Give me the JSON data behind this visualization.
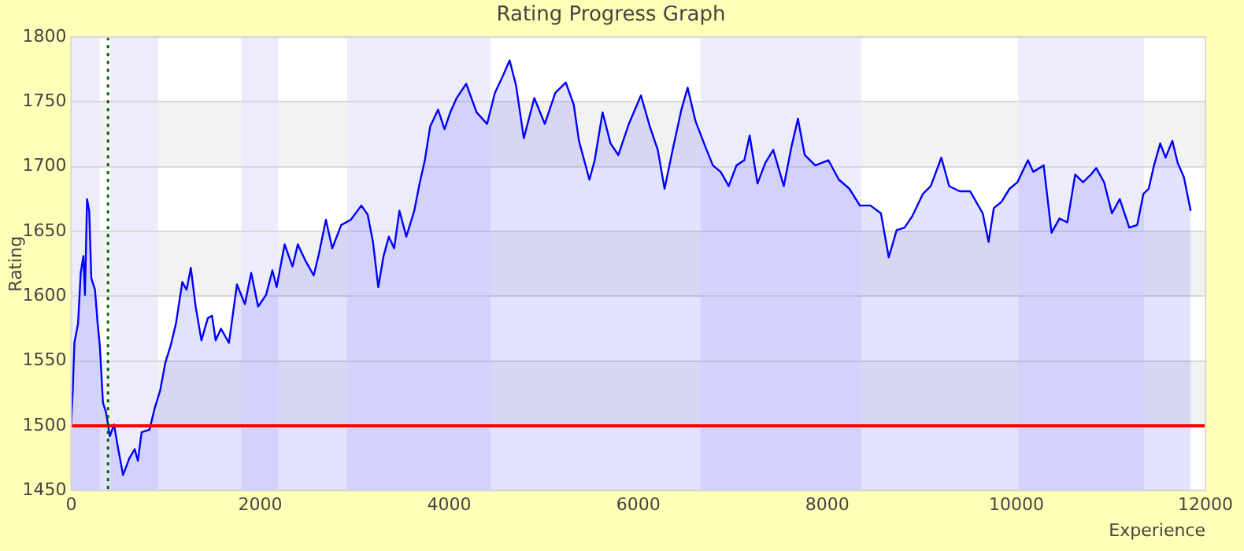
{
  "chart_data": {
    "type": "area",
    "title": "Rating Progress Graph",
    "xlabel": "Experience",
    "ylabel": "Rating",
    "xlim": [
      0,
      12000
    ],
    "xticks": [
      0,
      2000,
      4000,
      6000,
      8000,
      10000,
      12000
    ],
    "ylim": [
      1450,
      1800
    ],
    "yticks": [
      1450,
      1500,
      1550,
      1600,
      1650,
      1700,
      1750,
      1800
    ],
    "grid": "y",
    "legend": false,
    "x": [
      0,
      17,
      34,
      73,
      101,
      129,
      146,
      168,
      191,
      213,
      252,
      280,
      303,
      336,
      370,
      409,
      454,
      493,
      549,
      616,
      672,
      706,
      745,
      829,
      885,
      941,
      997,
      1053,
      1109,
      1176,
      1221,
      1266,
      1317,
      1378,
      1445,
      1490,
      1529,
      1585,
      1669,
      1754,
      1838,
      1905,
      1978,
      2062,
      2129,
      2174,
      2258,
      2342,
      2398,
      2482,
      2566,
      2622,
      2695,
      2762,
      2857,
      2958,
      3070,
      3137,
      3193,
      3249,
      3305,
      3361,
      3417,
      3473,
      3546,
      3630,
      3686,
      3742,
      3798,
      3882,
      3950,
      4011,
      4078,
      4179,
      4289,
      4400,
      4483,
      4567,
      4639,
      4706,
      4789,
      4900,
      5011,
      5122,
      5233,
      5317,
      5372,
      5483,
      5539,
      5622,
      5706,
      5789,
      5900,
      6028,
      6122,
      6206,
      6278,
      6372,
      6456,
      6522,
      6606,
      6706,
      6789,
      6872,
      6956,
      7039,
      7122,
      7178,
      7261,
      7344,
      7428,
      7539,
      7622,
      7689,
      7761,
      7872,
      8011,
      8122,
      8233,
      8344,
      8456,
      8567,
      8650,
      8733,
      8817,
      8900,
      9011,
      9094,
      9206,
      9289,
      9400,
      9511,
      9644,
      9706,
      9761,
      9844,
      9928,
      10011,
      10122,
      10178,
      10289,
      10372,
      10456,
      10539,
      10622,
      10706,
      10789,
      10844,
      10928,
      11011,
      11094,
      11194,
      11278,
      11344,
      11400,
      11456,
      11522,
      11578,
      11650,
      11706,
      11772,
      11844
    ],
    "series": [
      {
        "color": "#0000ff",
        "values": [
          1501,
          1527,
          1564,
          1579,
          1618,
          1631,
          1601,
          1675,
          1666,
          1614,
          1605,
          1579,
          1562,
          1518,
          1510,
          1492,
          1501,
          1484,
          1462,
          1475,
          1482,
          1473,
          1495,
          1497,
          1514,
          1527,
          1549,
          1562,
          1579,
          1611,
          1605,
          1622,
          1592,
          1566,
          1583,
          1585,
          1566,
          1575,
          1564,
          1609,
          1594,
          1618,
          1592,
          1601,
          1620,
          1607,
          1640,
          1623,
          1640,
          1627,
          1616,
          1633,
          1659,
          1637,
          1655,
          1659,
          1670,
          1663,
          1642,
          1607,
          1631,
          1646,
          1637,
          1666,
          1646,
          1666,
          1687,
          1705,
          1731,
          1744,
          1729,
          1742,
          1753,
          1764,
          1742,
          1733,
          1757,
          1770,
          1782,
          1763,
          1722,
          1753,
          1733,
          1757,
          1765,
          1748,
          1720,
          1690,
          1705,
          1742,
          1718,
          1709,
          1733,
          1755,
          1731,
          1713,
          1683,
          1716,
          1744,
          1761,
          1735,
          1716,
          1701,
          1696,
          1685,
          1701,
          1705,
          1724,
          1687,
          1703,
          1713,
          1685,
          1716,
          1737,
          1709,
          1701,
          1705,
          1690,
          1683,
          1670,
          1670,
          1664,
          1630,
          1651,
          1653,
          1662,
          1679,
          1685,
          1707,
          1685,
          1681,
          1681,
          1664,
          1642,
          1668,
          1673,
          1683,
          1688,
          1705,
          1696,
          1701,
          1649,
          1660,
          1657,
          1694,
          1688,
          1694,
          1699,
          1688,
          1664,
          1675,
          1653,
          1655,
          1679,
          1683,
          1701,
          1718,
          1707,
          1720,
          1703,
          1692,
          1666
        ]
      }
    ],
    "bands": [
      {
        "axis": "x",
        "from": 0,
        "to": 300,
        "color": "#ececfc"
      },
      {
        "axis": "x",
        "from": 417,
        "to": 918,
        "color": "#ececfc"
      },
      {
        "axis": "x",
        "from": 1800,
        "to": 2190,
        "color": "#ececfc"
      },
      {
        "axis": "x",
        "from": 2920,
        "to": 4435,
        "color": "#ececfc"
      },
      {
        "axis": "x",
        "from": 6660,
        "to": 8360,
        "color": "#ececfc"
      },
      {
        "axis": "x",
        "from": 10020,
        "to": 11350,
        "color": "#ececfc"
      }
    ],
    "ref_lines": [
      {
        "axis": "y",
        "value": 1500,
        "color": "#ff0000",
        "line_style": "solid"
      },
      {
        "axis": "x",
        "value": 390,
        "color": "#006400",
        "line_style": "dotted"
      }
    ]
  }
}
